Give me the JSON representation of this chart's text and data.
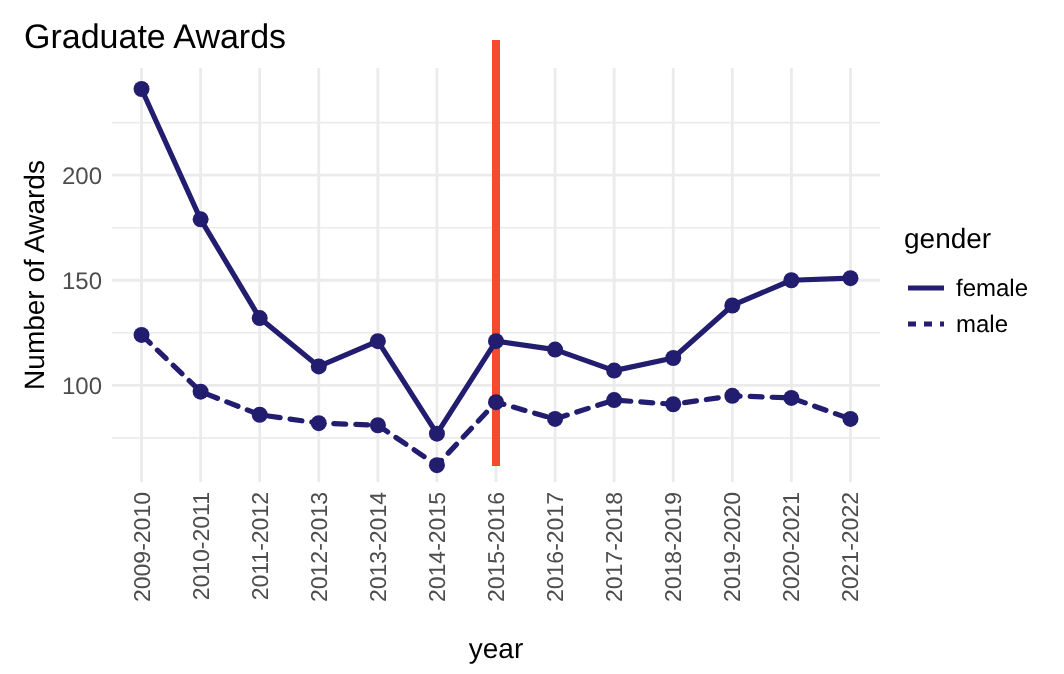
{
  "chart_data": {
    "type": "line",
    "title": "Graduate Awards",
    "xlabel": "year",
    "ylabel": "Number of Awards",
    "legend_title": "gender",
    "categories": [
      "2009-2010",
      "2010-2011",
      "2011-2012",
      "2012-2013",
      "2013-2014",
      "2014-2015",
      "2015-2016",
      "2016-2017",
      "2017-2018",
      "2018-2019",
      "2019-2020",
      "2020-2021",
      "2021-2022"
    ],
    "series": [
      {
        "name": "female",
        "color": "#221d6e",
        "line_style": "solid",
        "values": [
          241,
          179,
          132,
          109,
          121,
          77,
          121,
          117,
          107,
          113,
          138,
          150,
          151
        ]
      },
      {
        "name": "male",
        "color": "#221d6e",
        "line_style": "dashed",
        "values": [
          124,
          97,
          86,
          82,
          81,
          62,
          92,
          84,
          93,
          91,
          95,
          94,
          84
        ]
      }
    ],
    "ylim": [
      54,
      251
    ],
    "yticks": [
      {
        "value": 75,
        "label": null
      },
      100,
      {
        "value": 125,
        "label": null
      },
      150,
      {
        "value": 175,
        "label": null
      },
      200,
      {
        "value": 225,
        "label": null
      }
    ],
    "grid": true,
    "marker": "circle",
    "legend": "right",
    "ref_lines": [
      {
        "axis": "x",
        "value": "2015-2016",
        "label": null,
        "color": "#f44a30"
      }
    ]
  }
}
